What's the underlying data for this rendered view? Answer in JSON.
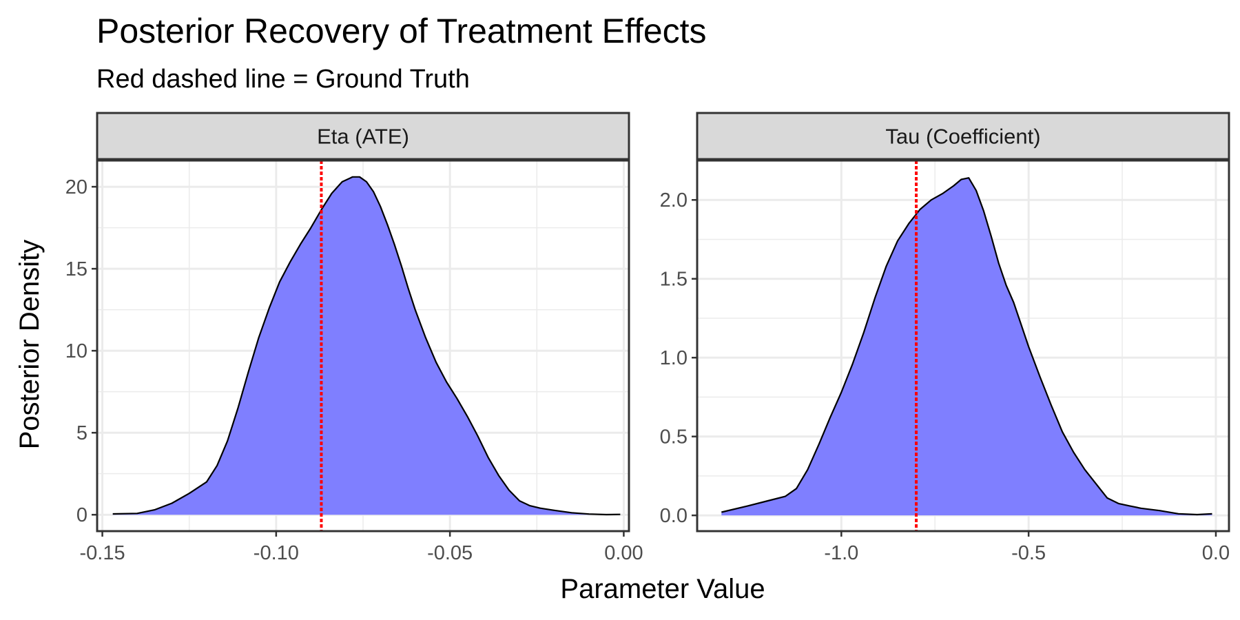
{
  "chart_data": {
    "type": "area",
    "title": "Posterior Recovery of Treatment Effects",
    "subtitle": "Red dashed line = Ground Truth",
    "xlabel": "Parameter Value",
    "ylabel": "Posterior Density",
    "fill_color": "#7f7fff",
    "outline_color": "#000000",
    "truth_color": "#ff0000",
    "grid": true,
    "panels": [
      {
        "label": "Eta (ATE)",
        "xlim": [
          -0.1515,
          0.0015
        ],
        "ylim": [
          -1.0,
          21.6
        ],
        "x_ticks": [
          -0.15,
          -0.1,
          -0.05,
          0.0
        ],
        "x_tick_labels": [
          "-0.15",
          "-0.10",
          "-0.05",
          "0.00"
        ],
        "y_ticks": [
          0,
          5,
          10,
          15,
          20
        ],
        "y_tick_labels": [
          "0",
          "5",
          "10",
          "15",
          "20"
        ],
        "ground_truth": -0.087,
        "density": {
          "x": [
            -0.147,
            -0.14,
            -0.135,
            -0.13,
            -0.125,
            -0.12,
            -0.117,
            -0.114,
            -0.111,
            -0.108,
            -0.105,
            -0.102,
            -0.099,
            -0.096,
            -0.093,
            -0.09,
            -0.087,
            -0.084,
            -0.081,
            -0.078,
            -0.076,
            -0.074,
            -0.072,
            -0.07,
            -0.068,
            -0.066,
            -0.064,
            -0.062,
            -0.06,
            -0.057,
            -0.054,
            -0.051,
            -0.048,
            -0.045,
            -0.042,
            -0.039,
            -0.036,
            -0.033,
            -0.03,
            -0.027,
            -0.024,
            -0.02,
            -0.015,
            -0.01,
            -0.005,
            -0.001
          ],
          "y": [
            0.05,
            0.08,
            0.3,
            0.7,
            1.3,
            2.0,
            3.0,
            4.5,
            6.5,
            8.7,
            10.8,
            12.6,
            14.2,
            15.4,
            16.5,
            17.5,
            18.6,
            19.6,
            20.3,
            20.6,
            20.6,
            20.3,
            19.7,
            18.8,
            17.7,
            16.5,
            15.2,
            13.8,
            12.5,
            10.8,
            9.3,
            8.1,
            7.1,
            6.0,
            4.8,
            3.5,
            2.4,
            1.5,
            0.85,
            0.55,
            0.4,
            0.27,
            0.12,
            0.04,
            0.01,
            0.02
          ]
        }
      },
      {
        "label": "Tau (Coefficient)",
        "xlim": [
          -1.385,
          0.035
        ],
        "ylim": [
          -0.1,
          2.25
        ],
        "x_ticks": [
          -1.0,
          -0.5,
          0.0
        ],
        "x_tick_labels": [
          "-1.0",
          "-0.5",
          "0.0"
        ],
        "y_ticks": [
          0.0,
          0.5,
          1.0,
          1.5,
          2.0
        ],
        "y_tick_labels": [
          "0.0",
          "0.5",
          "1.0",
          "1.5",
          "2.0"
        ],
        "ground_truth": -0.8,
        "density": {
          "x": [
            -1.32,
            -1.25,
            -1.2,
            -1.15,
            -1.12,
            -1.09,
            -1.06,
            -1.03,
            -1.0,
            -0.97,
            -0.94,
            -0.91,
            -0.88,
            -0.85,
            -0.82,
            -0.79,
            -0.76,
            -0.73,
            -0.7,
            -0.68,
            -0.66,
            -0.64,
            -0.62,
            -0.6,
            -0.58,
            -0.56,
            -0.54,
            -0.52,
            -0.5,
            -0.47,
            -0.44,
            -0.41,
            -0.38,
            -0.35,
            -0.32,
            -0.29,
            -0.26,
            -0.23,
            -0.2,
            -0.15,
            -0.1,
            -0.05,
            -0.01
          ],
          "y": [
            0.02,
            0.06,
            0.09,
            0.12,
            0.17,
            0.29,
            0.45,
            0.62,
            0.78,
            0.96,
            1.16,
            1.38,
            1.58,
            1.74,
            1.85,
            1.94,
            2.0,
            2.04,
            2.09,
            2.13,
            2.14,
            2.06,
            1.93,
            1.77,
            1.6,
            1.46,
            1.35,
            1.21,
            1.07,
            0.88,
            0.7,
            0.53,
            0.4,
            0.29,
            0.2,
            0.11,
            0.075,
            0.06,
            0.045,
            0.03,
            0.01,
            0.005,
            0.01
          ]
        }
      }
    ]
  }
}
